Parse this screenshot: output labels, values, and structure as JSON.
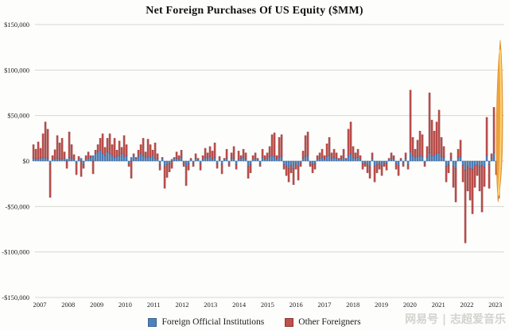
{
  "title": "Net Foreign Purchases Of US Equity ($MM)",
  "watermark": "网易号 | 志超爱音乐",
  "colors": {
    "official": "#4f81bd",
    "official_border": "#3a618e",
    "other": "#c0504d",
    "other_border": "#8e3634",
    "grid": "#d6d6d2",
    "axis_text": "#222222",
    "arrow_fill": "#f0a23c",
    "arrow_edge": "#d98a28",
    "arrow_inner": "#fcd878"
  },
  "legend": [
    {
      "key": "official",
      "label": "Foreign Official Institutions",
      "color": "#4f81bd"
    },
    {
      "key": "other",
      "label": "Other Foreigners",
      "color": "#c0504d"
    }
  ],
  "chart_data": {
    "type": "bar",
    "stacked": true,
    "unit": "$MM",
    "title": "Net Foreign Purchases Of US Equity ($MM)",
    "ylim": [
      -150000,
      150000
    ],
    "grid": true,
    "legend_position": "bottom",
    "y_ticks": [
      {
        "label": "$150,000",
        "value": 150000
      },
      {
        "label": "$100,000",
        "value": 100000
      },
      {
        "label": "$50,000",
        "value": 50000
      },
      {
        "label": "$0",
        "value": 0
      },
      {
        "label": "-$50,000",
        "value": -50000
      },
      {
        "label": "-$100,000",
        "value": -100000
      },
      {
        "label": "-$150,000",
        "value": -150000
      }
    ],
    "x_tick_labels": [
      "2007",
      "2008",
      "2009",
      "2010",
      "2011",
      "2012",
      "2013",
      "2014",
      "2015",
      "2016",
      "2017",
      "2018",
      "2019",
      "2020",
      "2021",
      "2022",
      "2023"
    ],
    "series_names": [
      "Foreign Official Institutions",
      "Other Foreigners"
    ],
    "years": [
      {
        "year": "2007",
        "official": [
          3000,
          2000,
          2500,
          3000,
          4000,
          3500,
          2500,
          -3000,
          2000,
          2500,
          3000,
          2000
        ],
        "other": [
          15000,
          11000,
          18500,
          11000,
          26000,
          39500,
          32500,
          -37000,
          4000,
          10000,
          25000,
          18000
        ]
      },
      {
        "year": "2008",
        "official": [
          2500,
          3000,
          2000,
          4000,
          3000,
          2000,
          -2500,
          2000,
          3000,
          -4000,
          2000,
          3000
        ],
        "other": [
          22500,
          7000,
          -8000,
          28000,
          15000,
          5000,
          -12500,
          3000,
          -17000,
          -4000,
          4000,
          7000
        ]
      },
      {
        "year": "2009",
        "official": [
          4000,
          6000,
          8000,
          10000,
          12000,
          8000,
          6000,
          10000,
          8000,
          6000,
          4000,
          5000
        ],
        "other": [
          2000,
          -14000,
          4000,
          8000,
          13000,
          22000,
          9000,
          15000,
          22000,
          12000,
          21000,
          7000
        ]
      },
      {
        "year": "2010",
        "official": [
          6000,
          8000,
          5000,
          6000,
          -3000,
          4000,
          6000,
          3000,
          5000,
          8000,
          6000,
          4000
        ],
        "other": [
          16000,
          7000,
          23000,
          12000,
          -3000,
          -19000,
          2000,
          1000,
          7000,
          10000,
          19000,
          6000
        ]
      },
      {
        "year": "2011",
        "official": [
          5000,
          4000,
          6000,
          3000,
          2000,
          -4000,
          3000,
          -6000,
          -4000,
          -3000,
          2000,
          3000
        ],
        "other": [
          19000,
          14000,
          6000,
          17000,
          6000,
          -6000,
          1000,
          -24000,
          -14000,
          -9000,
          -8000,
          1000
        ]
      },
      {
        "year": "2012",
        "official": [
          3000,
          2000,
          4000,
          -2000,
          -6000,
          -3000,
          2000,
          -2000,
          3000,
          2000,
          -3000,
          2000
        ],
        "other": [
          7000,
          4000,
          8000,
          -4000,
          -21000,
          -7000,
          1000,
          -4000,
          5000,
          1000,
          -7000,
          4000
        ]
      },
      {
        "year": "2013",
        "official": [
          4000,
          3000,
          5000,
          2000,
          4000,
          -3000,
          2000,
          -4000,
          2000,
          3000,
          -2000,
          3000
        ],
        "other": [
          10000,
          6000,
          11000,
          9000,
          16000,
          -5000,
          3000,
          -10000,
          1000,
          10000,
          -4000,
          6000
        ]
      },
      {
        "year": "2014",
        "official": [
          3000,
          -4000,
          2000,
          3000,
          4000,
          2000,
          -6000,
          -4000,
          2000,
          3000,
          2000,
          -3000
        ],
        "other": [
          13000,
          -5000,
          9000,
          3000,
          9000,
          7000,
          -13000,
          -9000,
          4000,
          6000,
          1000,
          -3000
        ]
      },
      {
        "year": "2015",
        "official": [
          4000,
          2000,
          3000,
          5000,
          6000,
          5000,
          2000,
          4000,
          5000,
          -4000,
          -6000,
          -8000
        ],
        "other": [
          9000,
          4000,
          6000,
          11000,
          23000,
          26000,
          4000,
          22000,
          24000,
          -5000,
          -10000,
          -15000
        ]
      },
      {
        "year": "2016",
        "official": [
          -5000,
          -8000,
          -3000,
          -6000,
          -2000,
          3000,
          5000,
          6000,
          -2000,
          -4000,
          -3000,
          2000
        ],
        "other": [
          -8000,
          -18000,
          -6000,
          -15000,
          -4000,
          8000,
          23000,
          26000,
          -4000,
          -9000,
          -6000,
          4000
        ]
      },
      {
        "year": "2017",
        "official": [
          3000,
          4000,
          2000,
          5000,
          6000,
          3000,
          4000,
          3000,
          2000,
          2000,
          4000,
          2000
        ],
        "other": [
          6000,
          9000,
          4000,
          14000,
          20000,
          6000,
          9000,
          6000,
          1000,
          4000,
          9000,
          1000
        ]
      },
      {
        "year": "2018",
        "official": [
          6000,
          8000,
          4000,
          3000,
          4000,
          2000,
          -3000,
          -2000,
          -4000,
          -6000,
          3000,
          -6000
        ],
        "other": [
          29000,
          35000,
          12000,
          6000,
          9000,
          4000,
          -6000,
          -4000,
          -9000,
          -13000,
          6000,
          -17000
        ]
      },
      {
        "year": "2019",
        "official": [
          -4000,
          -3000,
          -5000,
          -2000,
          -3000,
          2000,
          3000,
          2000,
          -3000,
          -5000,
          2000,
          -2000
        ],
        "other": [
          -9000,
          -6000,
          -11000,
          -4000,
          -7000,
          1000,
          6000,
          4000,
          -6000,
          -11000,
          1000,
          -4000
        ]
      },
      {
        "year": "2020",
        "official": [
          3000,
          -4000,
          10000,
          6000,
          4000,
          5000,
          6000,
          5000,
          -2000,
          4000,
          9000,
          6000
        ],
        "other": [
          6000,
          -5000,
          68000,
          20000,
          9000,
          18000,
          27000,
          24000,
          -4000,
          12000,
          66000,
          39000
        ]
      },
      {
        "year": "2021",
        "official": [
          6000,
          8000,
          9000,
          5000,
          4000,
          -6000,
          -4000,
          3000,
          -6000,
          -8000,
          4000,
          5000
        ],
        "other": [
          27000,
          35000,
          47000,
          21000,
          12000,
          -17000,
          -9000,
          6000,
          -23000,
          -37000,
          9000,
          18000
        ]
      },
      {
        "year": "2022",
        "official": [
          -5000,
          -10000,
          -6000,
          -8000,
          -9000,
          -5000,
          -4000,
          -6000,
          -5000,
          -7000,
          6000,
          -4000
        ],
        "other": [
          -18000,
          -80000,
          -27000,
          -35000,
          -49000,
          -24000,
          -12000,
          -27000,
          -51000,
          -21000,
          42000,
          -26000
        ]
      },
      {
        "year": "2023",
        "official": [
          3000,
          9000,
          -4000,
          -6000
        ],
        "other": [
          5000,
          50000,
          -11000,
          -35000
        ]
      }
    ],
    "annotation": {
      "type": "up-arrow",
      "description": "hand-drawn orange surge arrow at latest month",
      "from_value": -45000,
      "to_value": 133000,
      "color": "#f0a23c"
    }
  }
}
